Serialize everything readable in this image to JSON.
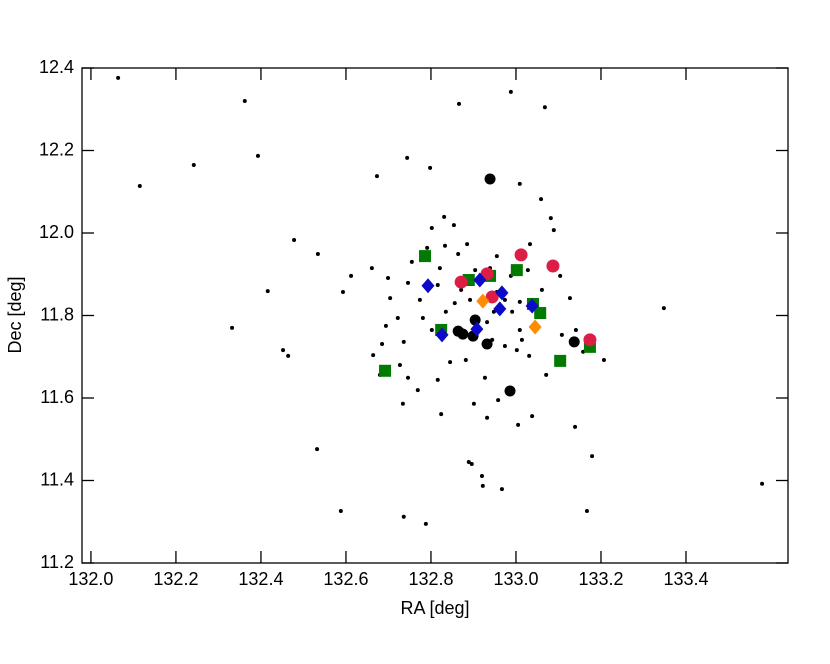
{
  "chart_data": {
    "type": "scatter",
    "x_label": "RA [deg]",
    "y_label": "Dec [deg]",
    "xlim": [
      131.979,
      133.64
    ],
    "ylim": [
      11.2,
      12.4
    ],
    "xticks": [
      {
        "value": 132.0,
        "label": "132.0"
      },
      132.2,
      132.4,
      132.6,
      132.8,
      {
        "value": 133.0,
        "label": "133.0"
      },
      133.2,
      133.4
    ],
    "yticks": [
      11.2,
      11.4,
      11.6,
      11.8,
      {
        "value": 12.0,
        "label": "12.0"
      },
      12.2,
      12.4
    ],
    "series": [
      {
        "marker": "dot",
        "color": "#000000",
        "x": [
          132.064,
          132.362,
          132.866,
          132.988,
          133.068,
          132.242,
          132.393,
          132.115,
          132.673,
          132.744,
          132.798,
          133.009,
          133.059,
          132.478,
          132.534,
          133.082,
          133.089,
          132.416,
          132.332,
          132.452,
          132.464,
          132.532,
          132.588,
          132.736,
          132.788,
          132.889,
          132.896,
          132.92,
          132.922,
          132.967,
          133.167,
          133.139,
          133.179,
          133.348,
          133.579,
          133.207,
          133.071,
          133.005,
          133.038,
          132.932,
          132.901,
          132.824,
          132.734,
          132.958,
          132.831,
          132.802,
          132.854,
          132.885,
          132.955,
          133.033,
          132.864,
          132.821,
          132.755,
          132.746,
          132.699,
          132.661,
          132.612,
          132.593,
          132.704,
          132.722,
          132.694,
          132.685,
          132.736,
          132.727,
          132.746,
          132.769,
          132.816,
          132.845,
          132.882,
          132.927,
          132.944,
          132.974,
          133.002,
          133.031,
          133.009,
          132.991,
          133.009,
          133.061,
          133.104,
          133.127,
          133.141,
          133.158,
          133.108,
          132.892,
          132.856,
          132.835,
          132.873,
          132.802,
          132.781,
          132.774,
          132.816,
          132.871,
          132.904,
          132.955,
          132.974,
          132.948,
          132.664,
          132.68,
          132.791,
          132.988,
          132.939,
          133.028,
          132.932,
          133.014,
          132.833
        ],
        "values": [
          12.376,
          12.32,
          12.313,
          12.342,
          12.305,
          12.165,
          12.187,
          12.114,
          12.138,
          12.182,
          12.158,
          12.119,
          12.082,
          11.983,
          11.949,
          12.036,
          12.007,
          11.859,
          11.77,
          11.716,
          11.702,
          11.476,
          11.326,
          11.312,
          11.295,
          11.445,
          11.44,
          11.411,
          11.387,
          11.379,
          11.326,
          11.53,
          11.459,
          11.818,
          11.392,
          11.692,
          11.656,
          11.535,
          11.556,
          11.552,
          11.586,
          11.561,
          11.586,
          11.595,
          12.039,
          12.012,
          12.019,
          11.973,
          11.944,
          11.973,
          11.949,
          11.915,
          11.93,
          11.879,
          11.891,
          11.915,
          11.896,
          11.857,
          11.842,
          11.794,
          11.775,
          11.731,
          11.736,
          11.68,
          11.649,
          11.619,
          11.644,
          11.687,
          11.692,
          11.649,
          11.741,
          11.726,
          11.716,
          11.702,
          11.765,
          11.809,
          11.833,
          11.862,
          11.896,
          11.842,
          11.765,
          11.712,
          11.753,
          11.838,
          11.83,
          11.809,
          11.765,
          11.765,
          11.794,
          11.838,
          11.874,
          11.862,
          11.91,
          11.857,
          11.838,
          11.809,
          11.704,
          11.656,
          11.964,
          11.896,
          11.915,
          11.91,
          11.784,
          11.741,
          11.969
        ]
      },
      {
        "marker": "circle-large",
        "color": "#000000",
        "x": [
          132.939,
          132.899,
          132.875,
          132.904,
          132.932,
          132.986,
          133.137,
          132.864
        ],
        "values": [
          12.131,
          11.75,
          11.755,
          11.789,
          11.731,
          11.617,
          11.736,
          11.762
        ]
      },
      {
        "marker": "square",
        "color": "#007a00",
        "x": [
          132.786,
          133.002,
          132.889,
          132.939,
          133.04,
          133.057,
          132.824,
          132.692,
          133.104,
          133.174
        ],
        "values": [
          11.944,
          11.91,
          11.886,
          11.896,
          11.828,
          11.806,
          11.765,
          11.666,
          11.69,
          11.724
        ]
      },
      {
        "marker": "circle",
        "color": "#dc1e46",
        "x": [
          133.012,
          133.087,
          132.932,
          132.871,
          132.944,
          133.174
        ],
        "values": [
          11.947,
          11.92,
          11.901,
          11.881,
          11.845,
          11.741
        ]
      },
      {
        "marker": "diamond",
        "color": "#0a0ac8",
        "x": [
          132.793,
          132.915,
          132.967,
          132.962,
          133.038,
          132.908,
          132.826
        ],
        "values": [
          11.872,
          11.886,
          11.855,
          11.816,
          11.823,
          11.767,
          11.753
        ]
      },
      {
        "marker": "diamond",
        "color": "#ff8c00",
        "x": [
          132.922,
          133.045
        ],
        "values": [
          11.835,
          11.772
        ]
      }
    ]
  }
}
